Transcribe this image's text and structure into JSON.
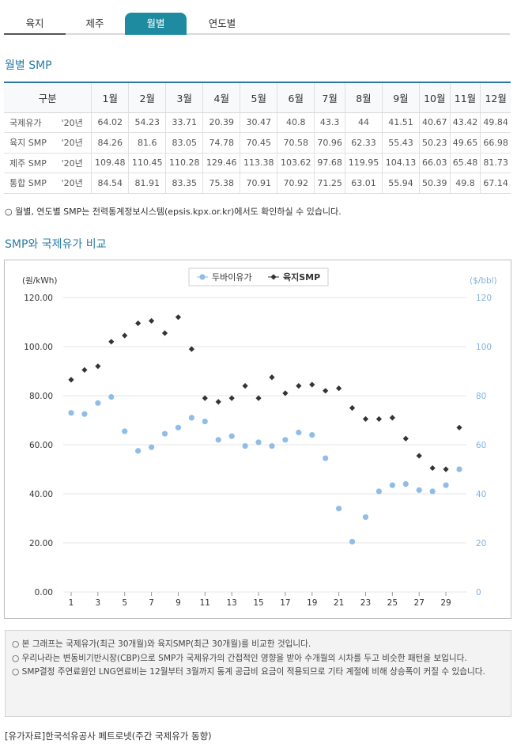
{
  "tabs": [
    {
      "label": "육지",
      "active": false
    },
    {
      "label": "제주",
      "active": false
    },
    {
      "label": "월별",
      "active": true
    },
    {
      "label": "연도별",
      "active": false
    }
  ],
  "monthly_title": "월별 SMP",
  "table": {
    "header_label": "구분",
    "months": [
      "1월",
      "2월",
      "3월",
      "4월",
      "5월",
      "6월",
      "7월",
      "8월",
      "9월",
      "10월",
      "11월",
      "12월"
    ],
    "rows": [
      {
        "label": "국제유가",
        "year": "'20년",
        "values": [
          "64.02",
          "54.23",
          "33.71",
          "20.39",
          "30.47",
          "40.8",
          "43.3",
          "44",
          "41.51",
          "40.67",
          "43.42",
          "49.84"
        ]
      },
      {
        "label": "육지 SMP",
        "year": "'20년",
        "values": [
          "84.26",
          "81.6",
          "83.05",
          "74.78",
          "70.45",
          "70.58",
          "70.96",
          "62.33",
          "55.43",
          "50.23",
          "49.65",
          "66.98"
        ]
      },
      {
        "label": "제주 SMP",
        "year": "'20년",
        "values": [
          "109.48",
          "110.45",
          "110.28",
          "129.46",
          "113.38",
          "103.62",
          "97.68",
          "119.95",
          "104.13",
          "66.03",
          "65.48",
          "81.73"
        ]
      },
      {
        "label": "통합 SMP",
        "year": "'20년",
        "values": [
          "84.54",
          "81.91",
          "83.35",
          "75.38",
          "70.91",
          "70.92",
          "71.25",
          "63.01",
          "55.94",
          "50.39",
          "49.8",
          "67.14"
        ]
      }
    ]
  },
  "note": "○ 월별, 연도별 SMP는 전력통계정보시스템(epsis.kpx.or.kr)에서도 확인하실 수 있습니다.",
  "compare_title": "SMP와 국제유가 비교",
  "chart_data": {
    "type": "scatter",
    "y_left_label": "(원/kWh)",
    "y_right_label": "($/bbl)",
    "legend_position": "top-center",
    "ylim": [
      0,
      120
    ],
    "y_ticks_left": [
      "0.00",
      "20.00",
      "40.00",
      "60.00",
      "80.00",
      "100.00",
      "120.00"
    ],
    "y_ticks_right": [
      "0",
      "20",
      "40",
      "60",
      "80",
      "100",
      "120"
    ],
    "x_ticks": [
      "1",
      "3",
      "5",
      "7",
      "9",
      "11",
      "13",
      "15",
      "17",
      "19",
      "21",
      "23",
      "25",
      "27",
      "29"
    ],
    "x": [
      1,
      2,
      3,
      4,
      5,
      6,
      7,
      8,
      9,
      10,
      11,
      12,
      13,
      14,
      15,
      16,
      17,
      18,
      19,
      20,
      21,
      22,
      23,
      24,
      25,
      26,
      27,
      28,
      29,
      30
    ],
    "series": [
      {
        "name": "두바이유가",
        "color": "#8fbde8",
        "marker": "circle",
        "values": [
          73,
          72.5,
          77,
          79.5,
          65.5,
          57.5,
          59,
          64.5,
          67,
          71,
          69.5,
          62,
          63.5,
          59.5,
          61,
          59.5,
          62,
          65,
          64,
          54.5,
          34,
          20.5,
          30.5,
          41,
          43.5,
          44,
          41.5,
          41,
          43.5,
          50
        ]
      },
      {
        "name": "육지SMP",
        "color": "#333333",
        "marker": "diamond",
        "values": [
          86.5,
          90.5,
          92,
          102,
          104.5,
          109.5,
          110.5,
          105.5,
          112,
          99,
          79,
          77.5,
          79,
          84,
          79,
          87.5,
          81,
          84,
          84.5,
          82,
          83,
          75,
          70.5,
          70.5,
          71,
          62.5,
          55.5,
          50.5,
          50,
          67
        ]
      }
    ]
  },
  "info_lines": [
    "○  본 그래프는 국제유가(최근 30개월)와 육지SMP(최근 30개월)를 비교한 것입니다.",
    "○  우리나라는 변동비기반시장(CBP)으로 SMP가 국제유가의 간접적인 영향을 받아 수개월의 시차를 두고 비슷한 패턴을 보입니다.",
    "○  SMP결정 주연료원인 LNG연료비는 12월부터 3월까지 동계 공급비 요금이 적용되므로 기타 계절에 비해 상승폭이 커질 수 있습니다."
  ],
  "source": "[유가자료]한국석유공사 페트로넷(주간 국제유가 동향)"
}
